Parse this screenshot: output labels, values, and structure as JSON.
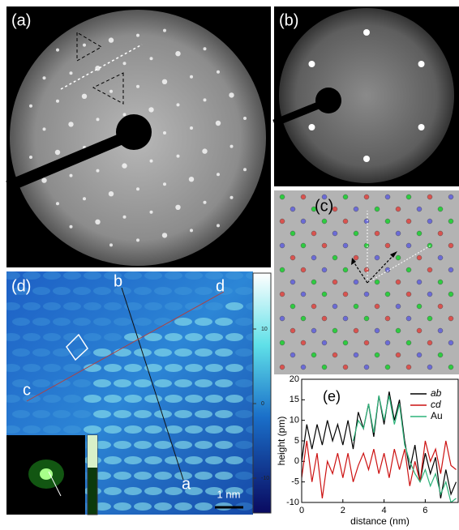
{
  "panels": {
    "a": "(a)",
    "b": "(b)",
    "c": "(c)",
    "d": "(d)",
    "e": "(e)"
  },
  "stm": {
    "points": {
      "a": "a",
      "b": "b",
      "c": "c",
      "d": "d"
    },
    "scale_bar": "1 nm",
    "colorbar_ticks": [
      10,
      0,
      -10
    ]
  },
  "chart_data": {
    "type": "line",
    "xlabel": "distance (nm)",
    "ylabel": "height (pm)",
    "x": [
      0,
      0.25,
      0.5,
      0.75,
      1,
      1.25,
      1.5,
      1.75,
      2,
      2.25,
      2.5,
      2.75,
      3,
      3.25,
      3.5,
      3.75,
      4,
      4.25,
      4.5,
      4.75,
      5,
      5.25,
      5.5,
      5.75,
      6,
      6.25,
      6.5,
      6.75,
      7,
      7.25,
      7.5
    ],
    "series": [
      {
        "name": "ab",
        "color": "#000000",
        "values": [
          0,
          9,
          3,
          9,
          4,
          10,
          5,
          9,
          4,
          10,
          3,
          12,
          8,
          14,
          6,
          16,
          9,
          17,
          10,
          15,
          5,
          -2,
          4,
          -5,
          2,
          -3,
          1,
          -9,
          -2,
          -8,
          -5
        ]
      },
      {
        "name": "cd",
        "color": "#cc1111",
        "values": [
          -4,
          5,
          -5,
          2,
          -9,
          0,
          -3,
          2,
          -4,
          2,
          -5,
          -1,
          2,
          -2,
          3,
          -3,
          2,
          -4,
          3,
          -2,
          3,
          -6,
          0,
          -5,
          5,
          0,
          3,
          -3,
          5,
          -1,
          -2
        ]
      },
      {
        "name": "Au",
        "color": "#2db37a",
        "values": [
          null,
          null,
          null,
          null,
          null,
          null,
          null,
          null,
          null,
          null,
          5,
          10,
          8,
          14,
          7,
          16,
          10,
          16,
          9,
          14,
          4,
          0,
          -3,
          -5,
          -2,
          -6,
          -3,
          -8,
          -5,
          -10,
          -9
        ]
      }
    ],
    "xlim": [
      0,
      7.6
    ],
    "ylim": [
      -10,
      20
    ],
    "xticks": [
      0,
      2,
      4,
      6
    ],
    "yticks": [
      -10,
      -5,
      0,
      5,
      10,
      15,
      20
    ]
  }
}
